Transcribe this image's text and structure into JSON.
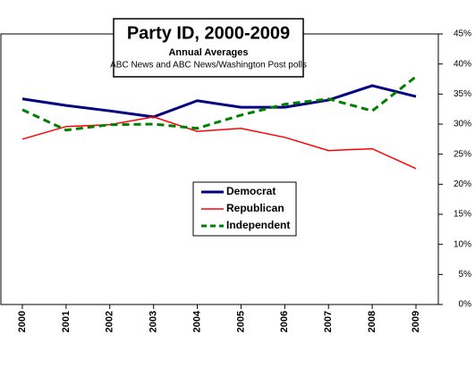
{
  "chart_data": {
    "type": "line",
    "title": "Party ID, 2000-2009",
    "subtitle": "Annual Averages",
    "source": "ABC News and ABC News/Washington Post polls",
    "categories": [
      "2000",
      "2001",
      "2002",
      "2003",
      "2004",
      "2005",
      "2006",
      "2007",
      "2008",
      "2009"
    ],
    "series": [
      {
        "name": "Democrat",
        "color": "#000080",
        "dashed": false,
        "values": [
          34.2,
          33.1,
          32.2,
          31.2,
          33.9,
          32.8,
          32.8,
          34.0,
          36.4,
          34.6
        ]
      },
      {
        "name": "Republican",
        "color": "#ff0000",
        "dashed": false,
        "values": [
          27.5,
          29.6,
          29.9,
          31.2,
          28.8,
          29.3,
          27.8,
          25.6,
          25.9,
          22.6
        ]
      },
      {
        "name": "Independent",
        "color": "#008000",
        "dashed": true,
        "values": [
          32.4,
          29.0,
          29.9,
          30.0,
          29.3,
          31.5,
          33.3,
          34.2,
          32.2,
          37.9
        ]
      }
    ],
    "ylim": [
      0,
      45
    ],
    "yticks": [
      {
        "value": 0,
        "label": "0%"
      },
      {
        "value": 5,
        "label": "5%"
      },
      {
        "value": 10,
        "label": "10%"
      },
      {
        "value": 15,
        "label": "15%"
      },
      {
        "value": 20,
        "label": "20%"
      },
      {
        "value": 25,
        "label": "25%"
      },
      {
        "value": 30,
        "label": "30%"
      },
      {
        "value": 35,
        "label": "35%"
      },
      {
        "value": 40,
        "label": "40%"
      },
      {
        "value": 45,
        "label": "45%"
      }
    ],
    "grid": false
  }
}
